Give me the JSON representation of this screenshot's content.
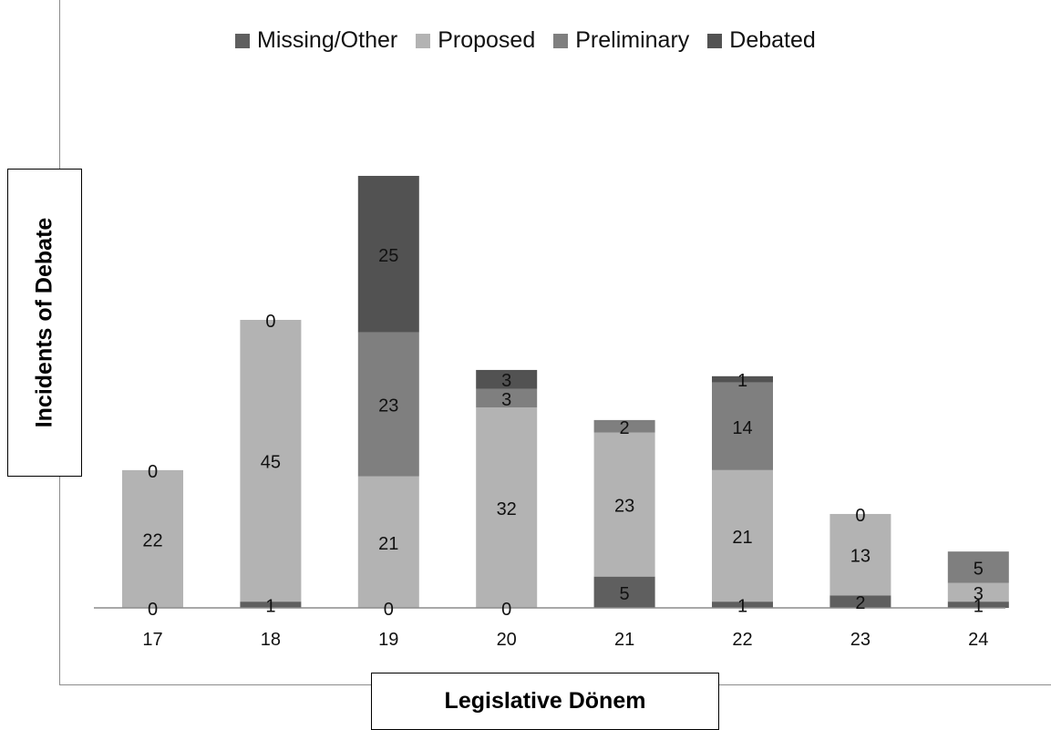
{
  "chart_data": {
    "type": "bar",
    "stacked": true,
    "categories": [
      "17",
      "18",
      "19",
      "20",
      "21",
      "22",
      "23",
      "24"
    ],
    "series": [
      {
        "name": "Missing/Other",
        "color": "#5f5f5f",
        "values": [
          0,
          1,
          0,
          0,
          5,
          1,
          2,
          1
        ]
      },
      {
        "name": "Proposed",
        "color": "#b3b3b3",
        "values": [
          22,
          45,
          21,
          32,
          23,
          21,
          13,
          3
        ]
      },
      {
        "name": "Preliminary",
        "color": "#7f7f7f",
        "values": [
          0,
          0,
          23,
          3,
          2,
          14,
          0,
          5
        ]
      },
      {
        "name": "Debated",
        "color": "#525252",
        "values": [
          0,
          0,
          25,
          3,
          0,
          1,
          0,
          0
        ]
      }
    ],
    "xlabel": "Legislative Dönem",
    "ylabel": "Incidents of Debate",
    "ylim": [
      0,
      70
    ],
    "grid": false,
    "legend_position": "top"
  }
}
